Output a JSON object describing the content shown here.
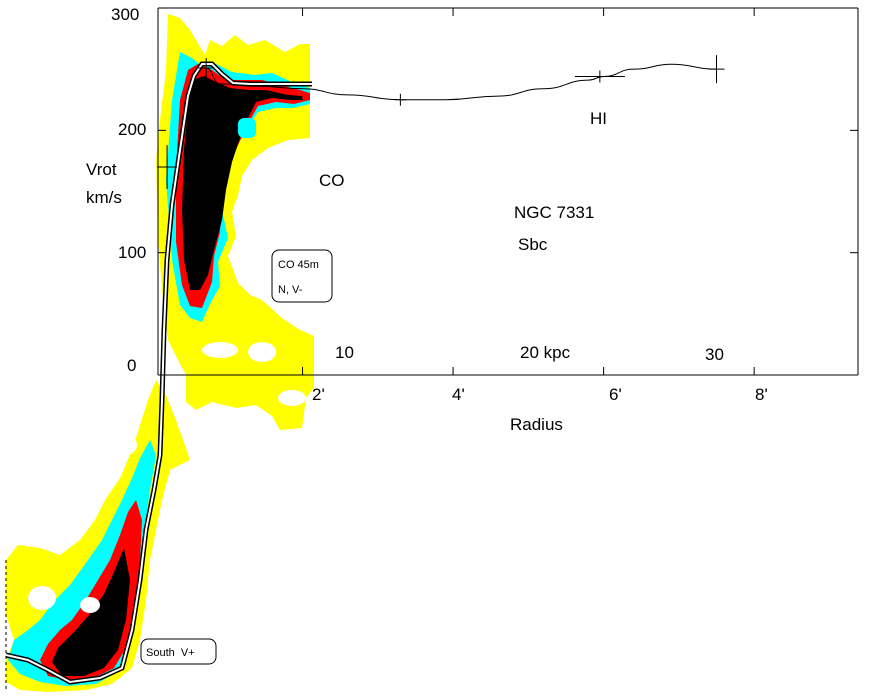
{
  "chart_data": {
    "type": "line",
    "title": "NGC 7331",
    "subtitle": "Sbc",
    "ylabel": [
      "Vrot",
      "km/s"
    ],
    "xlabel": "Radius",
    "y_ticks": [
      "300",
      "200",
      "100",
      "0"
    ],
    "ylim": [
      0,
      300
    ],
    "x_arcmin_ticks": [
      "2'",
      "4'",
      "6'",
      "8'"
    ],
    "x_kpc_ticks": [
      "10",
      "20 kpc",
      "30"
    ],
    "xlim_arcmin": [
      0,
      9.3
    ],
    "annotations": {
      "hi_label": "HI",
      "co_label": "CO",
      "box_co": [
        "CO 45m",
        "N, V-"
      ],
      "box_south": "South  V+"
    },
    "series": [
      {
        "name": "HI",
        "x_arcmin": [
          0.72,
          0.9,
          1.4,
          2.0,
          2.6,
          3.3,
          3.9,
          4.6,
          5.2,
          5.8,
          6.0,
          6.4,
          6.9,
          7.5
        ],
        "y_kms": [
          251,
          238,
          236,
          234,
          229,
          225,
          225,
          228,
          234,
          241,
          244,
          250,
          254,
          250
        ],
        "error_points": [
          {
            "x": 3.3,
            "y": 225
          },
          {
            "x": 5.95,
            "y": 244
          },
          {
            "x": 7.5,
            "y": 250
          }
        ]
      }
    ],
    "co_error_points": [
      {
        "x": 0.2,
        "y": 170
      },
      {
        "x": 0.72,
        "y": 251
      }
    ],
    "co_intensity_levels": [
      "#000000",
      "#ff0000",
      "#00ffff",
      "#ffff00"
    ],
    "rotation_curve_color": "#ffffff"
  }
}
